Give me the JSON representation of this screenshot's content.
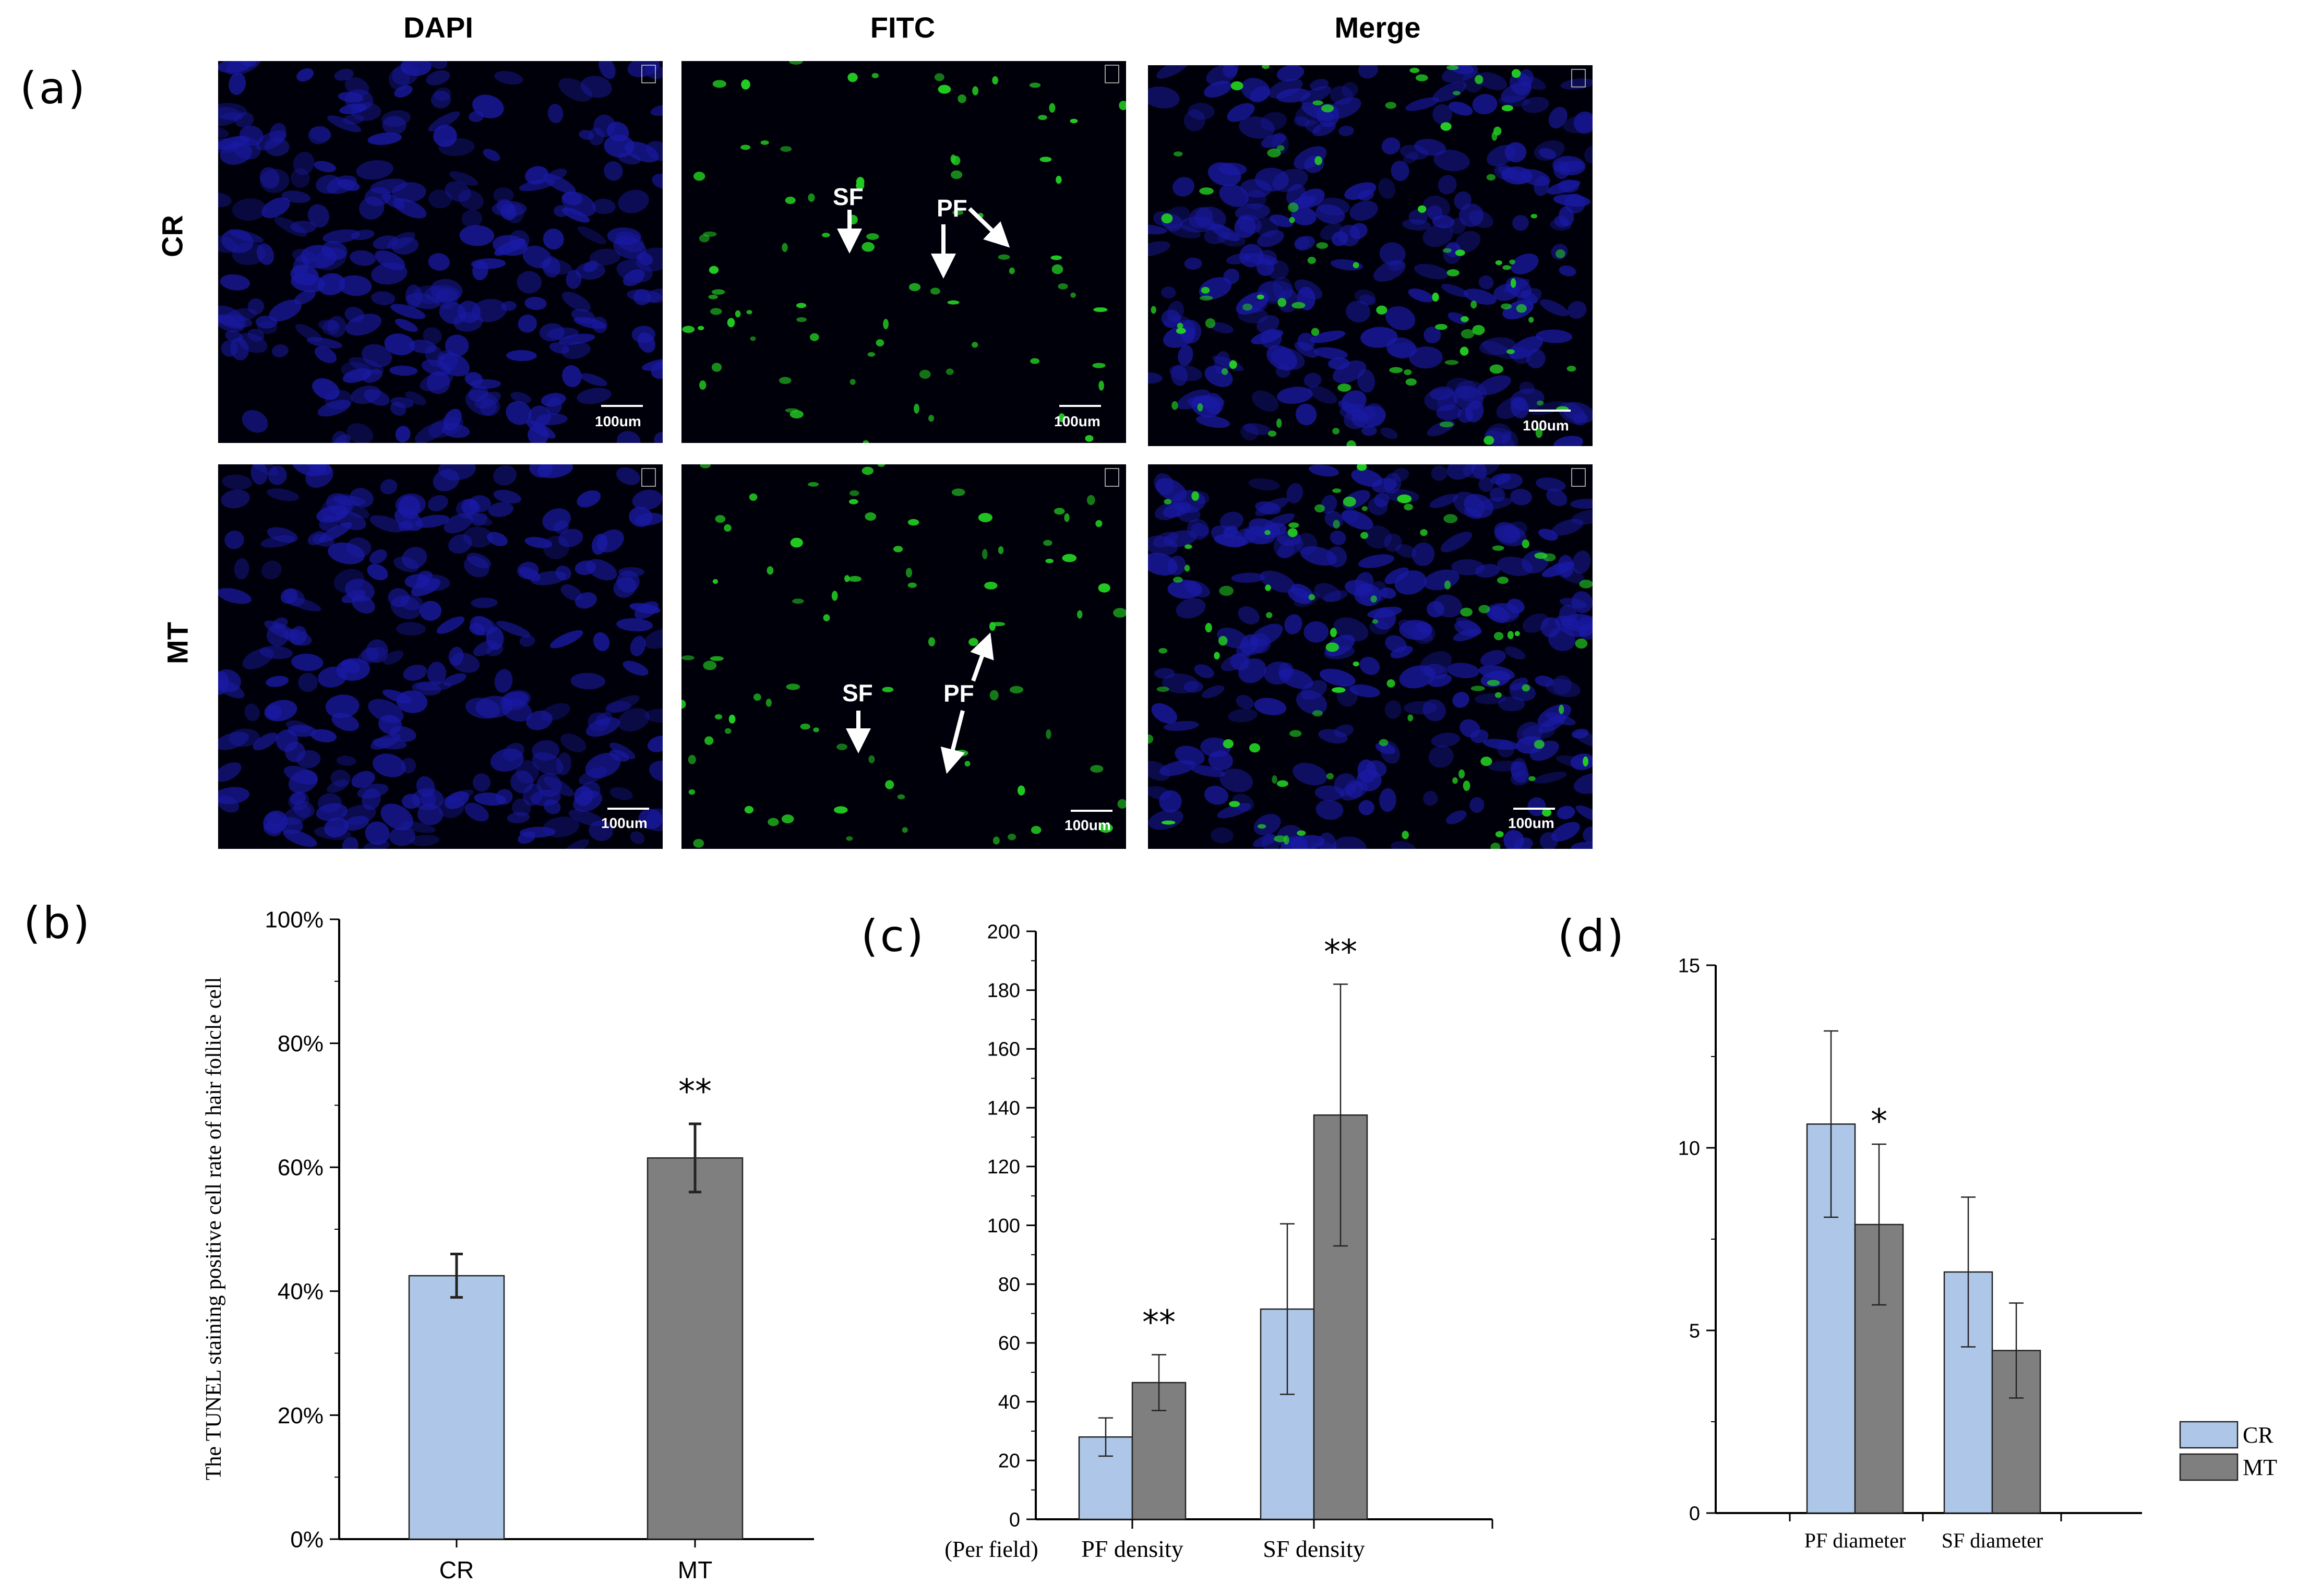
{
  "panels": {
    "a": "(a)",
    "b": "(b)",
    "c": "(c)",
    "d": "(d)"
  },
  "image_grid": {
    "columns": [
      "DAPI",
      "FITC",
      "Merge"
    ],
    "rows": [
      "CR",
      "MT"
    ],
    "scale_bar": "100um",
    "arrow_labels": {
      "sf": "SF",
      "pf": "PF"
    }
  },
  "colors": {
    "cr": "#aec7e8",
    "mt": "#7f7f7f",
    "dapi": "#1a1aa6",
    "fitc": "#22cc22"
  },
  "chart_data": [
    {
      "type": "bar",
      "panel": "(b)",
      "categories": [
        "CR",
        "MT"
      ],
      "values": [
        42.5,
        61.5
      ],
      "errors": [
        3.5,
        5.5
      ],
      "significance": [
        "",
        "**"
      ],
      "ylabel": "The TUNEL staining positive cell rate of hair follicle cell",
      "ylim": [
        0,
        100
      ],
      "yticks": [
        "0%",
        "20%",
        "40%",
        "60%",
        "80%",
        "100%"
      ]
    },
    {
      "type": "bar",
      "panel": "(c)",
      "categories": [
        "PF density",
        "SF density"
      ],
      "unit_label": "(Per field)",
      "series": [
        {
          "name": "CR",
          "values": [
            28,
            71.5
          ],
          "errors": [
            6.5,
            29
          ]
        },
        {
          "name": "MT",
          "values": [
            46.5,
            137.5
          ],
          "errors": [
            9.5,
            44.5
          ]
        }
      ],
      "significance": [
        "**",
        "**"
      ],
      "ylim": [
        0,
        200
      ],
      "yticks": [
        "0",
        "20",
        "40",
        "60",
        "80",
        "100",
        "120",
        "140",
        "160",
        "180",
        "200"
      ]
    },
    {
      "type": "bar",
      "panel": "(d)",
      "categories": [
        "PF diameter",
        "SF diameter"
      ],
      "series": [
        {
          "name": "CR",
          "values": [
            10.65,
            6.6
          ],
          "errors": [
            2.55,
            2.05
          ]
        },
        {
          "name": "MT",
          "values": [
            7.9,
            4.45
          ],
          "errors": [
            2.2,
            1.3
          ]
        }
      ],
      "significance": [
        "*",
        ""
      ],
      "ylim": [
        0,
        15
      ],
      "yticks": [
        "0",
        "5",
        "10",
        "15"
      ],
      "legend": [
        "CR",
        "MT"
      ],
      "legend_position": "right"
    }
  ]
}
